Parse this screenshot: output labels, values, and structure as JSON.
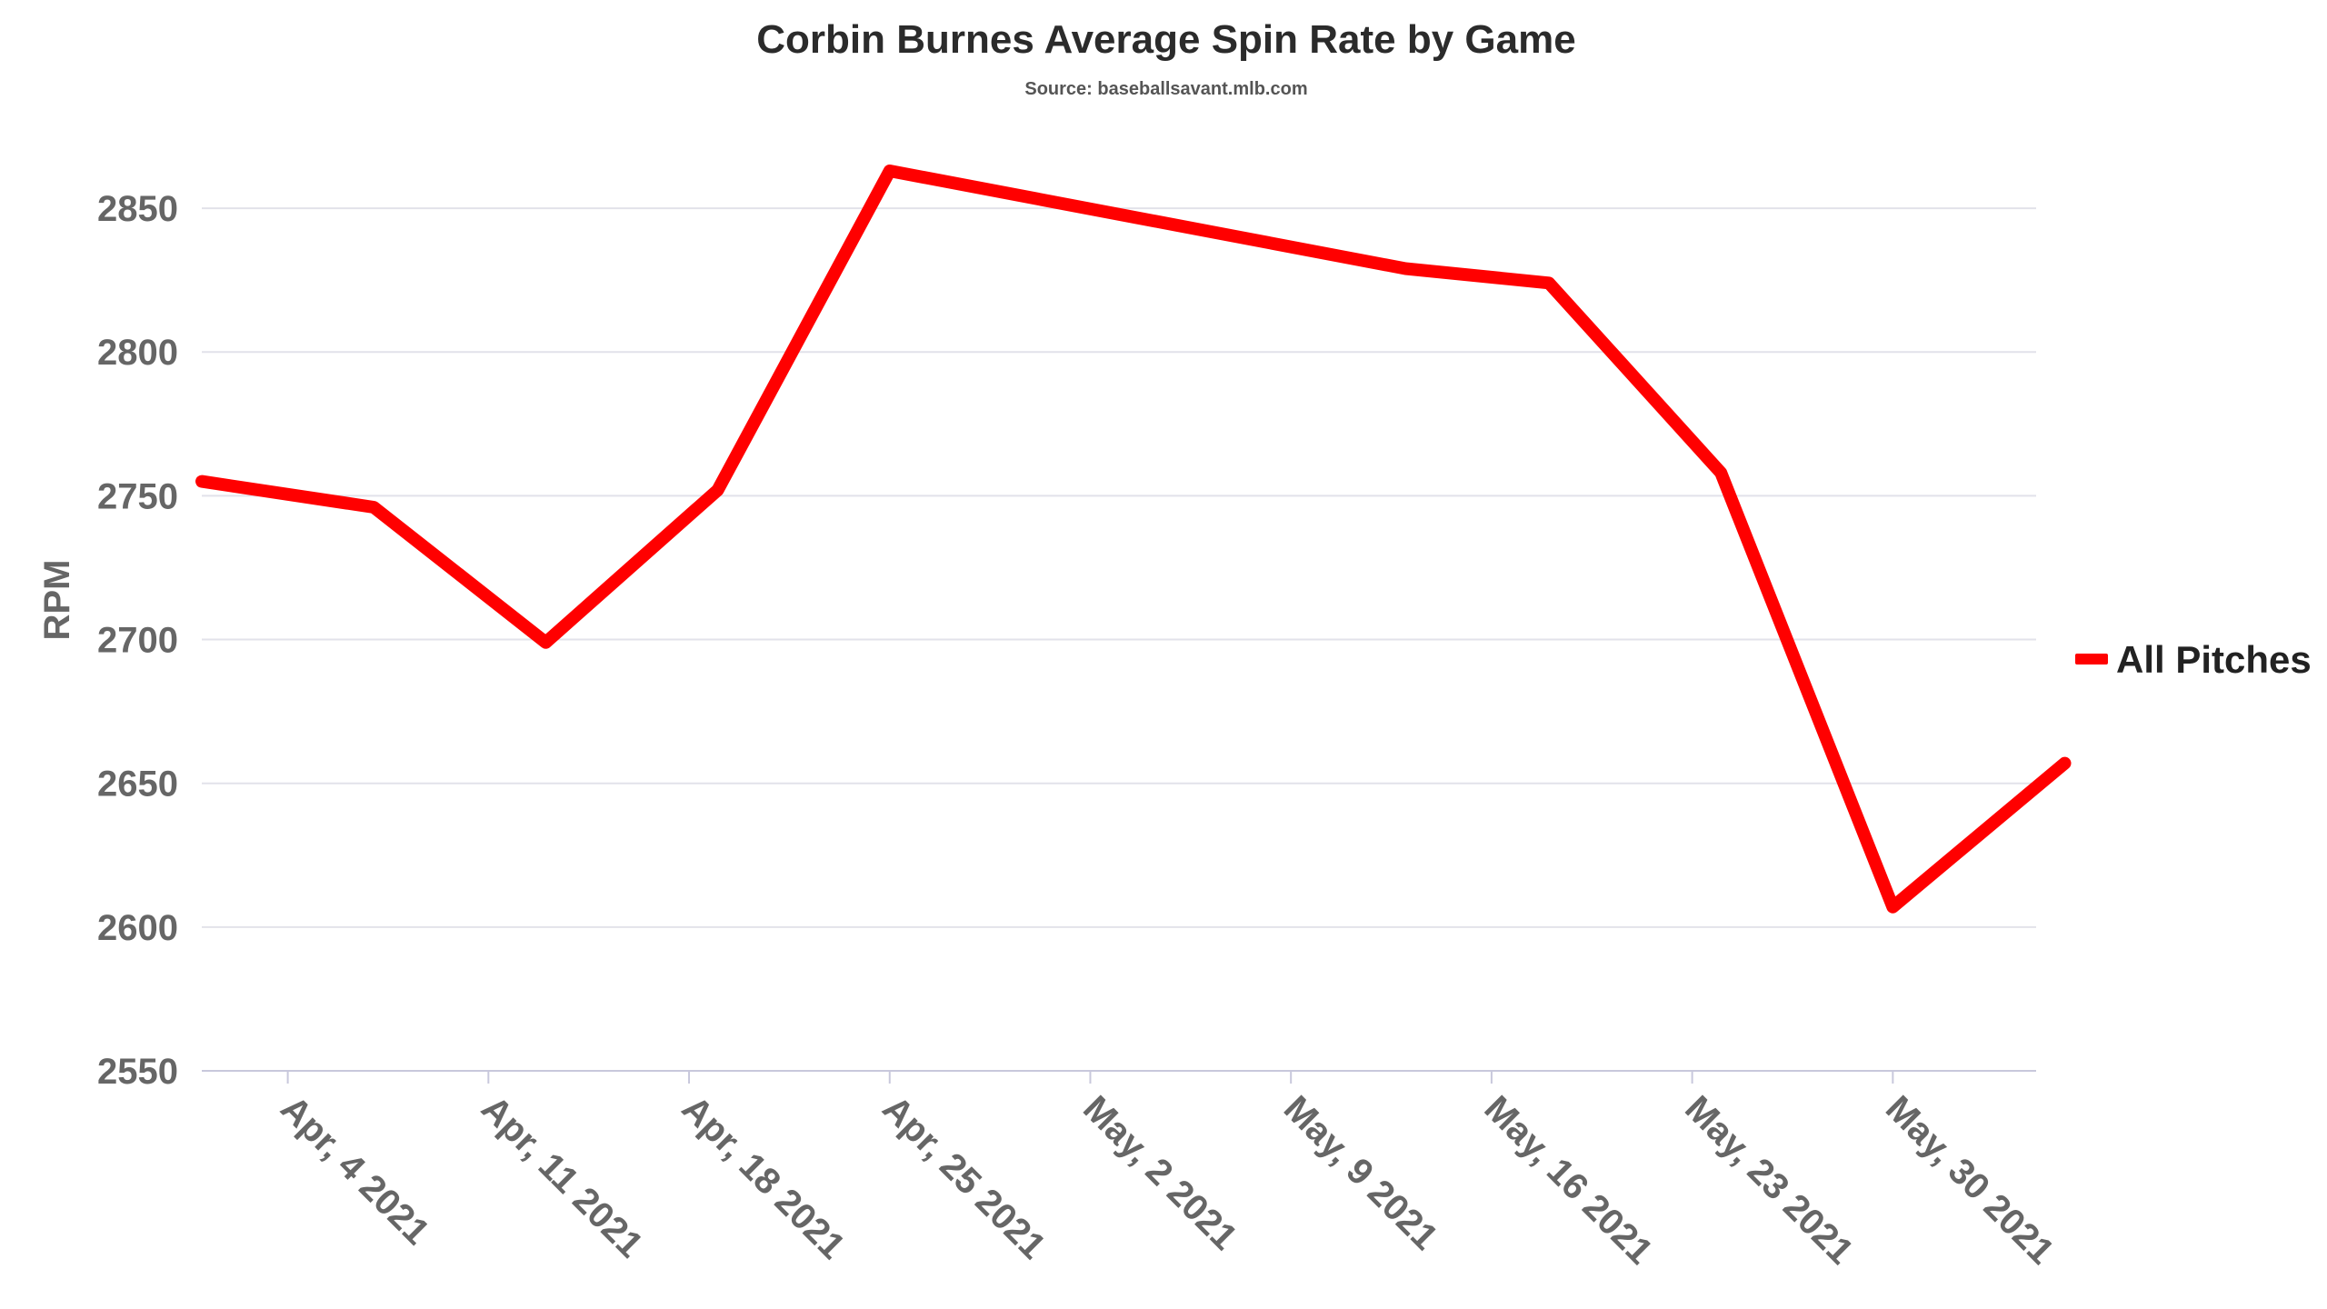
{
  "chart_data": {
    "type": "line",
    "title": "Corbin Burnes Average Spin Rate by Game",
    "subtitle": "Source: baseballsavant.mlb.com",
    "ylabel": "RPM",
    "xlabel": "",
    "ylim": [
      2550,
      2875
    ],
    "yticks": [
      2550,
      2600,
      2650,
      2700,
      2750,
      2800,
      2850
    ],
    "xlim": [
      "2021-04-01",
      "2021-06-04"
    ],
    "xticks": [
      {
        "date": "2021-04-04",
        "label": "Apr, 4 2021"
      },
      {
        "date": "2021-04-11",
        "label": "Apr, 11 2021"
      },
      {
        "date": "2021-04-18",
        "label": "Apr, 18 2021"
      },
      {
        "date": "2021-04-25",
        "label": "Apr, 25 2021"
      },
      {
        "date": "2021-05-02",
        "label": "May, 2 2021"
      },
      {
        "date": "2021-05-09",
        "label": "May, 9 2021"
      },
      {
        "date": "2021-05-16",
        "label": "May, 16 2021"
      },
      {
        "date": "2021-05-23",
        "label": "May, 23 2021"
      },
      {
        "date": "2021-05-30",
        "label": "May, 30 2021"
      }
    ],
    "grid": "horizontal",
    "legend_position": "right",
    "series": [
      {
        "name": "All Pitches",
        "color": "#ff0000",
        "points": [
          {
            "x": "2021-04-01",
            "y": 2755
          },
          {
            "x": "2021-04-07",
            "y": 2746
          },
          {
            "x": "2021-04-13",
            "y": 2699
          },
          {
            "x": "2021-04-19",
            "y": 2752
          },
          {
            "x": "2021-04-25",
            "y": 2863
          },
          {
            "x": "2021-05-13",
            "y": 2829
          },
          {
            "x": "2021-05-18",
            "y": 2824
          },
          {
            "x": "2021-05-24",
            "y": 2758
          },
          {
            "x": "2021-05-30",
            "y": 2607
          },
          {
            "x": "2021-06-05",
            "y": 2657
          }
        ]
      }
    ]
  }
}
